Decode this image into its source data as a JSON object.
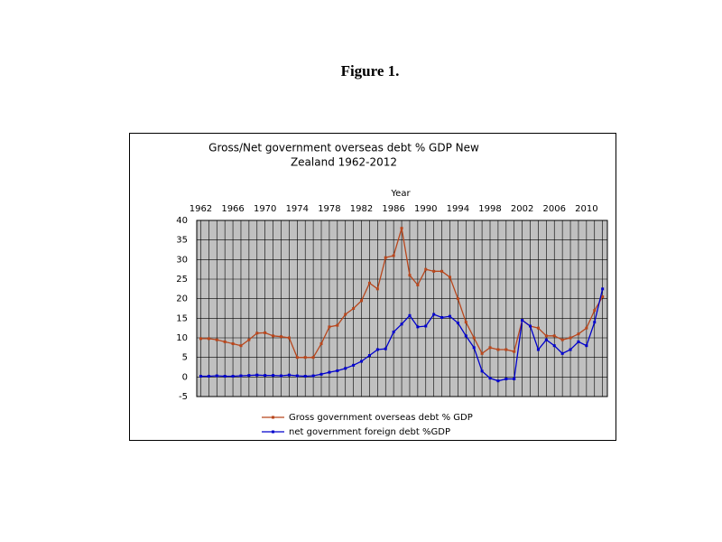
{
  "figure_label": "Figure 1.",
  "chart_data": {
    "type": "line",
    "title": "Gross/Net  government overseas debt % GDP New Zealand 1962-2012",
    "title_lines": [
      "Gross/Net  government overseas debt % GDP New",
      "Zealand 1962-2012"
    ],
    "x_label": "Year",
    "x": [
      1962,
      1963,
      1964,
      1965,
      1966,
      1967,
      1968,
      1969,
      1970,
      1971,
      1972,
      1973,
      1974,
      1975,
      1976,
      1977,
      1978,
      1979,
      1980,
      1981,
      1982,
      1983,
      1984,
      1985,
      1986,
      1987,
      1988,
      1989,
      1990,
      1991,
      1992,
      1993,
      1994,
      1995,
      1996,
      1997,
      1998,
      1999,
      2000,
      2001,
      2002,
      2003,
      2004,
      2005,
      2006,
      2007,
      2008,
      2009,
      2010,
      2011,
      2012
    ],
    "series": [
      {
        "name": "Gross government overseas debt % GDP",
        "color": "#b8461c",
        "values": [
          9.8,
          9.8,
          9.5,
          9,
          8.5,
          8,
          9.5,
          11.2,
          11.3,
          10.5,
          10.3,
          10,
          5,
          5,
          5,
          8.5,
          12.8,
          13.2,
          16,
          17.5,
          19.5,
          24,
          22.5,
          30.5,
          31,
          38,
          26,
          23.5,
          27.5,
          27,
          27,
          25.5,
          20,
          14,
          10,
          6,
          7.5,
          7,
          7,
          6.5,
          14.5,
          13,
          12.5,
          10.5,
          10.5,
          9.5,
          10,
          11,
          12.5,
          17,
          20.5
        ]
      },
      {
        "name": "net government foreign debt %GDP",
        "color": "#0000cc",
        "values": [
          0.2,
          0.2,
          0.3,
          0.2,
          0.2,
          0.3,
          0.4,
          0.5,
          0.4,
          0.4,
          0.3,
          0.5,
          0.3,
          0.2,
          0.3,
          0.7,
          1.2,
          1.6,
          2.2,
          3,
          4,
          5.5,
          7,
          7.2,
          11.5,
          13.5,
          15.7,
          12.8,
          13,
          16,
          15.2,
          15.5,
          13.8,
          10.5,
          7.5,
          1.5,
          -0.3,
          -1,
          -0.5,
          -0.5,
          14.5,
          13,
          7,
          9.5,
          8,
          6,
          7,
          9,
          8,
          14,
          22.5
        ]
      }
    ],
    "xlim": [
      1961.5,
      2012.6
    ],
    "xticks": [
      1962,
      1966,
      1970,
      1974,
      1978,
      1982,
      1986,
      1990,
      1994,
      1998,
      2002,
      2006,
      2010
    ],
    "ylim": [
      -5,
      40
    ],
    "yticks": [
      -5,
      0,
      5,
      10,
      15,
      20,
      25,
      30,
      35,
      40
    ],
    "grid": true,
    "x_axis_position": "top",
    "legend": "bottom",
    "plot_background": "#c0c0c0"
  }
}
